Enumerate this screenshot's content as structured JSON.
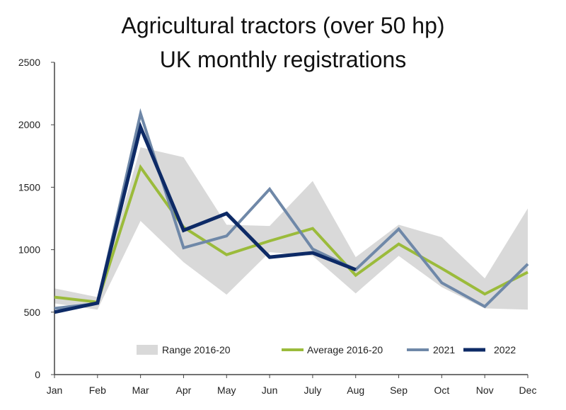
{
  "chart_data": {
    "type": "line",
    "title": [
      "Agricultural tractors (over 50 hp)",
      "UK monthly registrations"
    ],
    "xlabel": "",
    "ylabel": "",
    "categories": [
      "Jan",
      "Feb",
      "Mar",
      "Apr",
      "May",
      "Jun",
      "July",
      "Aug",
      "Sep",
      "Oct",
      "Nov",
      "Dec"
    ],
    "ylim": [
      0,
      2500
    ],
    "yticks": [
      0,
      500,
      1000,
      1500,
      2000,
      2500
    ],
    "grid": false,
    "legend_placement": "bottom-inside",
    "range": {
      "name": "Range 2016-20",
      "color": "#d9d9d9",
      "low": [
        570,
        520,
        1230,
        900,
        640,
        980,
        950,
        650,
        950,
        700,
        530,
        520
      ],
      "high": [
        690,
        620,
        1820,
        1740,
        1200,
        1190,
        1550,
        940,
        1200,
        1100,
        770,
        1330
      ]
    },
    "series": [
      {
        "name": "Average 2016-20",
        "color": "#9bbb3b",
        "width": 4,
        "values": [
          620,
          580,
          1660,
          1180,
          960,
          1070,
          1170,
          795,
          1045,
          850,
          645,
          820
        ]
      },
      {
        "name": "2021",
        "color": "#6f88a8",
        "width": 4,
        "values": [
          530,
          570,
          2090,
          1015,
          1110,
          1485,
          1005,
          840,
          1165,
          735,
          545,
          885
        ]
      },
      {
        "name": "2022",
        "color": "#0d2a66",
        "width": 5,
        "values": [
          500,
          573,
          1980,
          1155,
          1290,
          940,
          975,
          840,
          null,
          null,
          null,
          null
        ]
      }
    ]
  }
}
